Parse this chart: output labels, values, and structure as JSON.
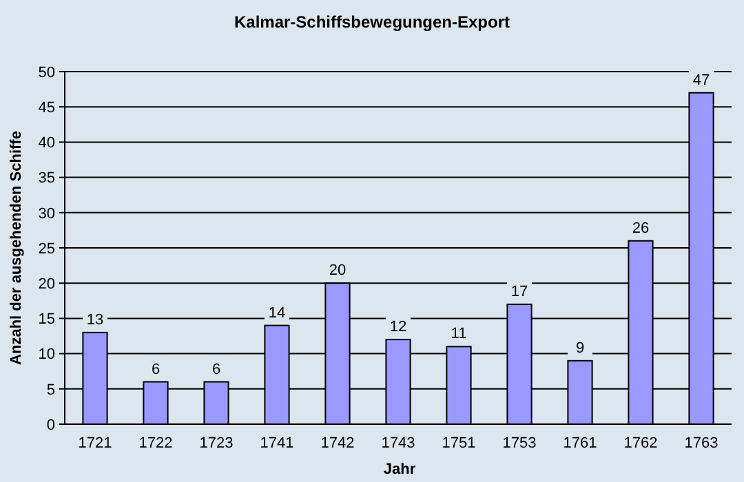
{
  "chart_data": {
    "type": "bar",
    "title": "Kalmar-Schiffsbewegungen-Export",
    "xlabel": "Jahr",
    "ylabel": "Anzahl der ausgehenden Schiffe",
    "categories": [
      "1721",
      "1722",
      "1723",
      "1741",
      "1742",
      "1743",
      "1751",
      "1753",
      "1761",
      "1762",
      "1763"
    ],
    "values": [
      13,
      6,
      6,
      14,
      20,
      12,
      11,
      17,
      9,
      26,
      47
    ],
    "color": "#9999ff",
    "ylim": [
      0,
      50
    ],
    "yticks": [
      0,
      5,
      10,
      15,
      20,
      25,
      30,
      35,
      40,
      45,
      50
    ],
    "grid": "y",
    "data_labels": true
  }
}
